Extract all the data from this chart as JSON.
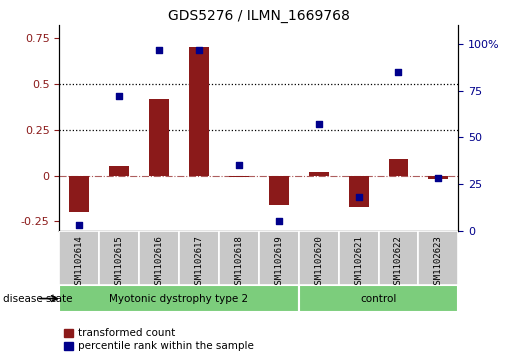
{
  "title": "GDS5276 / ILMN_1669768",
  "samples": [
    "GSM1102614",
    "GSM1102615",
    "GSM1102616",
    "GSM1102617",
    "GSM1102618",
    "GSM1102619",
    "GSM1102620",
    "GSM1102621",
    "GSM1102622",
    "GSM1102623"
  ],
  "transformed_count": [
    -0.2,
    0.05,
    0.42,
    0.7,
    -0.01,
    -0.16,
    0.02,
    -0.17,
    0.09,
    -0.02
  ],
  "percentile_rank": [
    3,
    72,
    97,
    97,
    35,
    5,
    57,
    18,
    85,
    28
  ],
  "groups": [
    {
      "label": "Myotonic dystrophy type 2",
      "start": 0,
      "end": 6
    },
    {
      "label": "control",
      "start": 6,
      "end": 10
    }
  ],
  "bar_color": "#8B1A1A",
  "scatter_color": "#00008B",
  "green_color": "#7CCD7C",
  "box_color": "#C8C8C8",
  "ylim_left": [
    -0.3,
    0.82
  ],
  "ylim_right": [
    0,
    110
  ],
  "yticks_left": [
    -0.25,
    0.0,
    0.25,
    0.5,
    0.75
  ],
  "ytick_labels_left": [
    "-0.25",
    "0",
    "0.25",
    "0.5",
    "0.75"
  ],
  "yticks_right": [
    0,
    25,
    50,
    75,
    100
  ],
  "ytick_labels_right": [
    "0",
    "25",
    "50",
    "75",
    "100%"
  ],
  "dotted_lines": [
    0.25,
    0.5
  ],
  "legend_red": "transformed count",
  "legend_blue": "percentile rank within the sample",
  "disease_state_label": "disease state",
  "title_fontsize": 10
}
